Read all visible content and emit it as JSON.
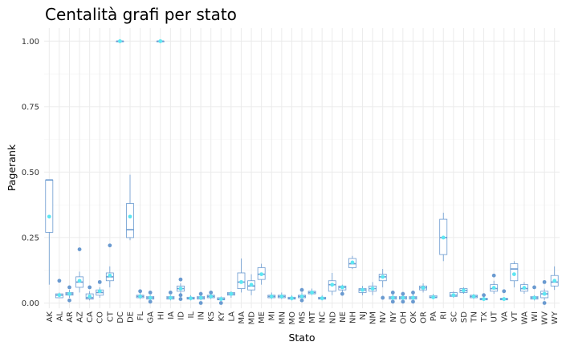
{
  "chart_data": {
    "type": "boxplot",
    "title": "Centalità grafi per stato",
    "xlabel": "Stato",
    "ylabel": "Pagerank",
    "ylim": [
      -0.02,
      1.05
    ],
    "yticks": [
      0.0,
      0.25,
      0.5,
      0.75,
      1.0
    ],
    "ytick_labels": [
      "0.00",
      "0.25",
      "0.50",
      "0.75",
      "1.00"
    ],
    "grid": true,
    "legend": "none",
    "colors": {
      "box": "#6a9ad0",
      "mean_point": "#5de6f2",
      "outlier": "#6a9ad0",
      "grid": "#ebebeb"
    },
    "categories": [
      "AK",
      "AL",
      "AR",
      "AZ",
      "CA",
      "CO",
      "CT",
      "DC",
      "DE",
      "FL",
      "GA",
      "HI",
      "IA",
      "ID",
      "IL",
      "IN",
      "KS",
      "KY",
      "LA",
      "MA",
      "MD",
      "ME",
      "MI",
      "MN",
      "MO",
      "MS",
      "MT",
      "NC",
      "ND",
      "NE",
      "NH",
      "NJ",
      "NM",
      "NV",
      "NY",
      "OH",
      "OK",
      "OR",
      "PA",
      "RI",
      "SC",
      "SD",
      "TN",
      "TX",
      "UT",
      "VA",
      "VT",
      "WA",
      "WI",
      "WV",
      "WY"
    ],
    "boxes": [
      {
        "state": "AK",
        "min": 0.07,
        "q1": 0.27,
        "median": 0.47,
        "q3": 0.47,
        "max": 0.47,
        "mean": 0.33,
        "outliers": []
      },
      {
        "state": "AL",
        "min": 0.02,
        "q1": 0.02,
        "median": 0.03,
        "q3": 0.035,
        "max": 0.04,
        "mean": 0.03,
        "outliers": [
          0.085
        ]
      },
      {
        "state": "AR",
        "min": 0.02,
        "q1": 0.03,
        "median": 0.035,
        "q3": 0.04,
        "max": 0.05,
        "mean": 0.035,
        "outliers": [
          0.06,
          0.01
        ]
      },
      {
        "state": "AZ",
        "min": 0.04,
        "q1": 0.06,
        "median": 0.08,
        "q3": 0.1,
        "max": 0.12,
        "mean": 0.085,
        "outliers": [
          0.205
        ]
      },
      {
        "state": "CA",
        "min": 0.01,
        "q1": 0.015,
        "median": 0.02,
        "q3": 0.035,
        "max": 0.045,
        "mean": 0.025,
        "outliers": [
          0.06
        ]
      },
      {
        "state": "CO",
        "min": 0.02,
        "q1": 0.03,
        "median": 0.04,
        "q3": 0.05,
        "max": 0.06,
        "mean": 0.045,
        "outliers": [
          0.08
        ]
      },
      {
        "state": "CT",
        "min": 0.06,
        "q1": 0.085,
        "median": 0.1,
        "q3": 0.115,
        "max": 0.14,
        "mean": 0.105,
        "outliers": [
          0.22
        ]
      },
      {
        "state": "DC",
        "min": 1.0,
        "q1": 1.0,
        "median": 1.0,
        "q3": 1.0,
        "max": 1.0,
        "mean": 1.0,
        "outliers": []
      },
      {
        "state": "DE",
        "min": 0.24,
        "q1": 0.25,
        "median": 0.28,
        "q3": 0.38,
        "max": 0.49,
        "mean": 0.33,
        "outliers": []
      },
      {
        "state": "FL",
        "min": 0.015,
        "q1": 0.02,
        "median": 0.025,
        "q3": 0.03,
        "max": 0.04,
        "mean": 0.025,
        "outliers": [
          0.045
        ]
      },
      {
        "state": "GA",
        "min": 0.01,
        "q1": 0.015,
        "median": 0.02,
        "q3": 0.025,
        "max": 0.03,
        "mean": 0.02,
        "outliers": [
          0.04,
          0.005
        ]
      },
      {
        "state": "HI",
        "min": 1.0,
        "q1": 1.0,
        "median": 1.0,
        "q3": 1.0,
        "max": 1.0,
        "mean": 1.0,
        "outliers": []
      },
      {
        "state": "IA",
        "min": 0.01,
        "q1": 0.015,
        "median": 0.02,
        "q3": 0.025,
        "max": 0.03,
        "mean": 0.02,
        "outliers": [
          0.04
        ]
      },
      {
        "state": "ID",
        "min": 0.03,
        "q1": 0.045,
        "median": 0.055,
        "q3": 0.065,
        "max": 0.075,
        "mean": 0.055,
        "outliers": [
          0.09,
          0.03,
          0.015
        ]
      },
      {
        "state": "IL",
        "min": 0.01,
        "q1": 0.015,
        "median": 0.018,
        "q3": 0.022,
        "max": 0.03,
        "mean": 0.018,
        "outliers": []
      },
      {
        "state": "IN",
        "min": 0.01,
        "q1": 0.015,
        "median": 0.02,
        "q3": 0.025,
        "max": 0.03,
        "mean": 0.02,
        "outliers": [
          0.035,
          0.0
        ]
      },
      {
        "state": "KS",
        "min": 0.015,
        "q1": 0.02,
        "median": 0.025,
        "q3": 0.03,
        "max": 0.035,
        "mean": 0.025,
        "outliers": [
          0.04
        ]
      },
      {
        "state": "KY",
        "min": 0.01,
        "q1": 0.012,
        "median": 0.015,
        "q3": 0.02,
        "max": 0.025,
        "mean": 0.015,
        "outliers": [
          0.0
        ]
      },
      {
        "state": "LA",
        "min": 0.02,
        "q1": 0.03,
        "median": 0.035,
        "q3": 0.04,
        "max": 0.045,
        "mean": 0.035,
        "outliers": []
      },
      {
        "state": "MA",
        "min": 0.04,
        "q1": 0.055,
        "median": 0.08,
        "q3": 0.115,
        "max": 0.17,
        "mean": 0.08,
        "outliers": []
      },
      {
        "state": "MD",
        "min": 0.03,
        "q1": 0.05,
        "median": 0.065,
        "q3": 0.085,
        "max": 0.11,
        "mean": 0.07,
        "outliers": []
      },
      {
        "state": "ME",
        "min": 0.07,
        "q1": 0.09,
        "median": 0.11,
        "q3": 0.135,
        "max": 0.15,
        "mean": 0.11,
        "outliers": []
      },
      {
        "state": "MI",
        "min": 0.015,
        "q1": 0.02,
        "median": 0.025,
        "q3": 0.03,
        "max": 0.04,
        "mean": 0.025,
        "outliers": []
      },
      {
        "state": "MN",
        "min": 0.015,
        "q1": 0.02,
        "median": 0.025,
        "q3": 0.03,
        "max": 0.04,
        "mean": 0.025,
        "outliers": []
      },
      {
        "state": "MO",
        "min": 0.01,
        "q1": 0.015,
        "median": 0.018,
        "q3": 0.022,
        "max": 0.03,
        "mean": 0.018,
        "outliers": []
      },
      {
        "state": "MS",
        "min": 0.015,
        "q1": 0.02,
        "median": 0.025,
        "q3": 0.03,
        "max": 0.04,
        "mean": 0.025,
        "outliers": [
          0.05,
          0.01
        ]
      },
      {
        "state": "MT",
        "min": 0.03,
        "q1": 0.035,
        "median": 0.04,
        "q3": 0.045,
        "max": 0.055,
        "mean": 0.04,
        "outliers": []
      },
      {
        "state": "NC",
        "min": 0.01,
        "q1": 0.015,
        "median": 0.018,
        "q3": 0.022,
        "max": 0.03,
        "mean": 0.018,
        "outliers": []
      },
      {
        "state": "ND",
        "min": 0.03,
        "q1": 0.045,
        "median": 0.07,
        "q3": 0.085,
        "max": 0.115,
        "mean": 0.07,
        "outliers": []
      },
      {
        "state": "NE",
        "min": 0.04,
        "q1": 0.05,
        "median": 0.06,
        "q3": 0.065,
        "max": 0.07,
        "mean": 0.06,
        "outliers": [
          0.035
        ]
      },
      {
        "state": "NH",
        "min": 0.13,
        "q1": 0.135,
        "median": 0.15,
        "q3": 0.17,
        "max": 0.18,
        "mean": 0.155,
        "outliers": []
      },
      {
        "state": "NJ",
        "min": 0.03,
        "q1": 0.04,
        "median": 0.05,
        "q3": 0.055,
        "max": 0.065,
        "mean": 0.05,
        "outliers": []
      },
      {
        "state": "NM",
        "min": 0.03,
        "q1": 0.045,
        "median": 0.055,
        "q3": 0.065,
        "max": 0.08,
        "mean": 0.055,
        "outliers": []
      },
      {
        "state": "NV",
        "min": 0.06,
        "q1": 0.085,
        "median": 0.1,
        "q3": 0.11,
        "max": 0.13,
        "mean": 0.1,
        "outliers": [
          0.02
        ]
      },
      {
        "state": "NY",
        "min": 0.01,
        "q1": 0.015,
        "median": 0.02,
        "q3": 0.025,
        "max": 0.035,
        "mean": 0.02,
        "outliers": [
          0.04,
          0.005
        ]
      },
      {
        "state": "OH",
        "min": 0.01,
        "q1": 0.015,
        "median": 0.02,
        "q3": 0.025,
        "max": 0.03,
        "mean": 0.02,
        "outliers": [
          0.035,
          0.005
        ]
      },
      {
        "state": "OK",
        "min": 0.01,
        "q1": 0.015,
        "median": 0.02,
        "q3": 0.025,
        "max": 0.035,
        "mean": 0.02,
        "outliers": [
          0.04,
          0.005
        ]
      },
      {
        "state": "OR",
        "min": 0.04,
        "q1": 0.05,
        "median": 0.058,
        "q3": 0.065,
        "max": 0.075,
        "mean": 0.058,
        "outliers": []
      },
      {
        "state": "PA",
        "min": 0.015,
        "q1": 0.02,
        "median": 0.022,
        "q3": 0.028,
        "max": 0.035,
        "mean": 0.022,
        "outliers": []
      },
      {
        "state": "RI",
        "min": 0.16,
        "q1": 0.185,
        "median": 0.25,
        "q3": 0.32,
        "max": 0.345,
        "mean": 0.25,
        "outliers": []
      },
      {
        "state": "SC",
        "min": 0.02,
        "q1": 0.025,
        "median": 0.03,
        "q3": 0.04,
        "max": 0.045,
        "mean": 0.03,
        "outliers": []
      },
      {
        "state": "SD",
        "min": 0.035,
        "q1": 0.04,
        "median": 0.048,
        "q3": 0.055,
        "max": 0.06,
        "mean": 0.048,
        "outliers": []
      },
      {
        "state": "TN",
        "min": 0.015,
        "q1": 0.02,
        "median": 0.025,
        "q3": 0.03,
        "max": 0.035,
        "mean": 0.025,
        "outliers": []
      },
      {
        "state": "TX",
        "min": 0.01,
        "q1": 0.012,
        "median": 0.015,
        "q3": 0.018,
        "max": 0.025,
        "mean": 0.015,
        "outliers": [
          0.03
        ]
      },
      {
        "state": "UT",
        "min": 0.035,
        "q1": 0.045,
        "median": 0.055,
        "q3": 0.07,
        "max": 0.085,
        "mean": 0.058,
        "outliers": [
          0.105
        ]
      },
      {
        "state": "VA",
        "min": 0.01,
        "q1": 0.012,
        "median": 0.015,
        "q3": 0.018,
        "max": 0.022,
        "mean": 0.015,
        "outliers": [
          0.045
        ]
      },
      {
        "state": "VT",
        "min": 0.06,
        "q1": 0.085,
        "median": 0.13,
        "q3": 0.15,
        "max": 0.16,
        "mean": 0.11,
        "outliers": []
      },
      {
        "state": "WA",
        "min": 0.035,
        "q1": 0.045,
        "median": 0.055,
        "q3": 0.07,
        "max": 0.08,
        "mean": 0.058,
        "outliers": []
      },
      {
        "state": "WI",
        "min": 0.01,
        "q1": 0.015,
        "median": 0.02,
        "q3": 0.025,
        "max": 0.03,
        "mean": 0.02,
        "outliers": [
          0.06
        ]
      },
      {
        "state": "WV",
        "min": 0.01,
        "q1": 0.02,
        "median": 0.035,
        "q3": 0.045,
        "max": 0.055,
        "mean": 0.035,
        "outliers": [
          0.08,
          0.0
        ]
      },
      {
        "state": "WY",
        "min": 0.05,
        "q1": 0.065,
        "median": 0.08,
        "q3": 0.105,
        "max": 0.14,
        "mean": 0.085,
        "outliers": []
      }
    ]
  }
}
